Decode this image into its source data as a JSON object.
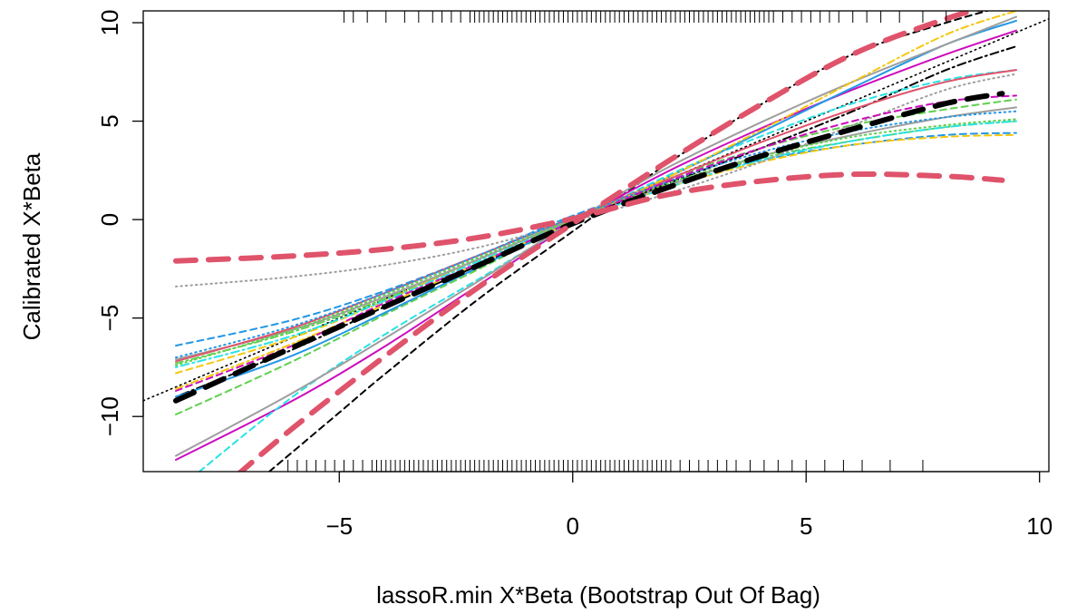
{
  "chart_data": {
    "type": "line",
    "xlabel": "lassoR.min X*Beta (Bootstrap Out Of Bag)",
    "ylabel": "Calibrated X*Beta",
    "xlim": [
      -9.2,
      10.2
    ],
    "ylim": [
      -12.8,
      10.6
    ],
    "x_ticks": [
      -5,
      0,
      5,
      10
    ],
    "x_tick_labels": [
      "−5",
      "0",
      "5",
      "10"
    ],
    "y_ticks": [
      -10,
      -5,
      0,
      5,
      10
    ],
    "y_tick_labels": [
      "−10",
      "−5",
      "0",
      "5",
      "10"
    ],
    "grid": false,
    "legend": "none",
    "reference_line": {
      "x": [
        -9.2,
        10.2
      ],
      "y": [
        -9.2,
        10.2
      ],
      "color": "#000000",
      "dash": "dotted"
    },
    "series": [
      {
        "x": [
          -8.5,
          -6,
          -4,
          -2,
          0,
          2,
          4,
          6,
          8,
          9.2
        ],
        "y": [
          -9.2,
          -6.5,
          -4.4,
          -2.3,
          -0.2,
          1.6,
          3.2,
          4.6,
          5.9,
          6.4
        ],
        "color": "#000000",
        "width": 6,
        "dash": "long"
      },
      {
        "x": [
          -8.5,
          -6,
          -4,
          -2,
          0,
          2,
          4,
          6,
          8,
          9.2
        ],
        "y": [
          -2.1,
          -1.85,
          -1.5,
          -0.9,
          0.05,
          1.25,
          1.95,
          2.3,
          2.2,
          2.0
        ],
        "color": "#df536b",
        "width": 6,
        "dash": "long"
      },
      {
        "x": [
          -7.2,
          -6,
          -4,
          -2,
          0,
          2,
          4,
          6,
          8,
          9.2
        ],
        "y": [
          -13.0,
          -10.6,
          -6.9,
          -3.4,
          -0.2,
          2.9,
          5.8,
          8.4,
          10.2,
          11.0
        ],
        "color": "#df536b",
        "width": 6,
        "dash": "long"
      },
      {
        "x": [
          -8.5,
          -6,
          -4,
          -2,
          0,
          2,
          4,
          6,
          8,
          9.5
        ],
        "y": [
          -6.4,
          -5.1,
          -3.6,
          -1.8,
          0.2,
          1.8,
          3.0,
          3.8,
          4.3,
          4.4
        ],
        "color": "#2297e6",
        "width": 2,
        "dash": "dashed"
      },
      {
        "x": [
          -8.5,
          -6,
          -4,
          -2,
          0,
          2,
          4,
          6,
          8,
          9.5
        ],
        "y": [
          -7.3,
          -5.7,
          -4.0,
          -2.0,
          0.0,
          1.7,
          3.1,
          4.0,
          4.7,
          5.0
        ],
        "color": "#61d04f",
        "width": 2,
        "dash": "dashdot"
      },
      {
        "x": [
          -8.5,
          -6,
          -4,
          -2,
          0,
          2,
          4,
          6,
          8,
          9.5
        ],
        "y": [
          -7.8,
          -6.0,
          -4.1,
          -2.0,
          -0.1,
          1.6,
          2.9,
          3.8,
          4.2,
          4.3
        ],
        "color": "#f5c710",
        "width": 2,
        "dash": "dashed"
      },
      {
        "x": [
          -8.5,
          -6,
          -4,
          -2,
          0,
          2,
          4,
          6,
          8,
          9.5
        ],
        "y": [
          -7.5,
          -5.9,
          -4.1,
          -2.1,
          -0.1,
          1.6,
          3.0,
          4.0,
          4.7,
          5.0
        ],
        "color": "#28e2e5",
        "width": 2,
        "dash": "dotdash"
      },
      {
        "x": [
          -8.5,
          -6,
          -4,
          -2,
          0,
          2,
          4,
          6,
          8,
          9.5
        ],
        "y": [
          -7.1,
          -5.6,
          -3.9,
          -2.0,
          0.0,
          1.7,
          3.2,
          4.3,
          5.2,
          5.7
        ],
        "color": "#9e9e9e",
        "width": 2,
        "dash": "solid"
      },
      {
        "x": [
          -8.5,
          -6,
          -4,
          -2,
          0,
          2,
          4,
          6,
          8,
          9.5
        ],
        "y": [
          -9.0,
          -6.6,
          -4.4,
          -2.3,
          -0.1,
          1.8,
          3.6,
          5.5,
          7.6,
          8.8
        ],
        "color": "#000000",
        "width": 2,
        "dash": "dotdash"
      },
      {
        "x": [
          -6.5,
          -5,
          -4,
          -2,
          0,
          2,
          4,
          6,
          8,
          9.5
        ],
        "y": [
          -12.8,
          -9.8,
          -7.8,
          -4.0,
          -0.6,
          2.8,
          5.8,
          8.4,
          10.0,
          11.0
        ],
        "color": "#000000",
        "width": 2,
        "dash": "dashed"
      },
      {
        "x": [
          -8.5,
          -6,
          -4,
          -2,
          0,
          2,
          4,
          6,
          8,
          9.5
        ],
        "y": [
          -12.2,
          -9.2,
          -6.4,
          -3.3,
          -0.2,
          2.4,
          4.6,
          6.6,
          8.4,
          9.6
        ],
        "color": "#cd0bbc",
        "width": 2,
        "dash": "solid"
      },
      {
        "x": [
          -8.0,
          -6,
          -4,
          -2,
          0,
          2,
          4,
          6,
          8,
          9.5
        ],
        "y": [
          -12.8,
          -9.0,
          -5.8,
          -3.0,
          -0.2,
          2.2,
          4.2,
          5.9,
          7.1,
          7.6
        ],
        "color": "#28e2e5",
        "width": 2,
        "dash": "dashed"
      },
      {
        "x": [
          -8.5,
          -6,
          -4,
          -2,
          0,
          2,
          4,
          6,
          8,
          9.5
        ],
        "y": [
          -9.9,
          -7.2,
          -4.8,
          -2.5,
          -0.1,
          2.0,
          3.6,
          4.8,
          5.6,
          6.1
        ],
        "color": "#61d04f",
        "width": 2,
        "dash": "dashed"
      },
      {
        "x": [
          -8.5,
          -6,
          -4,
          -2,
          0,
          2,
          4,
          6,
          8,
          9.5
        ],
        "y": [
          -9.0,
          -6.9,
          -4.7,
          -2.4,
          -0.1,
          2.1,
          4.4,
          6.7,
          8.9,
          10.1
        ],
        "color": "#2297e6",
        "width": 2,
        "dash": "solid"
      },
      {
        "x": [
          -8.5,
          -6,
          -4,
          -2,
          0,
          2,
          4,
          6,
          8,
          9.5
        ],
        "y": [
          -7.2,
          -5.5,
          -3.7,
          -1.8,
          0.1,
          2.0,
          3.9,
          5.6,
          7.0,
          7.6
        ],
        "color": "#df536b",
        "width": 2,
        "dash": "solid"
      },
      {
        "x": [
          -8.5,
          -6,
          -4,
          -2,
          0,
          2,
          4,
          6,
          8,
          9.5
        ],
        "y": [
          -12.0,
          -8.8,
          -6.0,
          -3.1,
          -0.1,
          2.6,
          4.9,
          7.0,
          8.9,
          10.3
        ],
        "color": "#9e9e9e",
        "width": 2,
        "dash": "solid"
      },
      {
        "x": [
          -8.5,
          -6,
          -4,
          -2,
          0,
          2,
          4,
          6,
          8,
          9.5
        ],
        "y": [
          -8.6,
          -6.3,
          -4.3,
          -2.2,
          -0.1,
          2.1,
          4.5,
          7.0,
          9.4,
          10.6
        ],
        "color": "#f5c710",
        "width": 2,
        "dash": "dashdot"
      },
      {
        "x": [
          -8.5,
          -6,
          -4,
          -2,
          0,
          2,
          4,
          6,
          8,
          9.5
        ],
        "y": [
          -3.4,
          -2.9,
          -2.3,
          -1.4,
          -0.1,
          1.3,
          2.9,
          4.8,
          6.6,
          7.4
        ],
        "color": "#9e9e9e",
        "width": 2,
        "dash": "dotted"
      },
      {
        "x": [
          -8.5,
          -6,
          -4,
          -2,
          0,
          2,
          4,
          6,
          8,
          9.5
        ],
        "y": [
          -7.0,
          -5.4,
          -3.7,
          -1.8,
          0.1,
          1.9,
          3.4,
          4.5,
          5.2,
          5.5
        ],
        "color": "#2297e6",
        "width": 2,
        "dash": "dotted"
      },
      {
        "x": [
          -8.5,
          -6,
          -4,
          -2,
          0,
          2,
          4,
          6,
          8,
          9.5
        ],
        "y": [
          -7.4,
          -5.6,
          -3.8,
          -1.9,
          0.0,
          1.8,
          3.2,
          4.2,
          4.8,
          5.1
        ],
        "color": "#61d04f",
        "width": 2,
        "dash": "dotted"
      },
      {
        "x": [
          -8.5,
          -6,
          -4,
          -2,
          0,
          2,
          4,
          6,
          8,
          9.5
        ],
        "y": [
          -8.7,
          -6.4,
          -4.2,
          -2.2,
          -0.1,
          1.9,
          3.6,
          5.0,
          6.0,
          6.3
        ],
        "color": "#cd0bbc",
        "width": 2,
        "dash": "dashed"
      }
    ],
    "rug_top": [
      -4.9,
      -4.7,
      -4.4,
      -4.0,
      -3.6,
      -3.3,
      -3.0,
      -2.8,
      -2.6,
      -2.4,
      -2.2,
      -2.1,
      -2.0,
      -1.9,
      -1.8,
      -1.7,
      -1.6,
      -1.5,
      -1.4,
      -1.3,
      -1.2,
      -1.1,
      -1.0,
      -0.9,
      -0.8,
      -0.7,
      -0.6,
      -0.5,
      -0.4,
      -0.3,
      -0.2,
      -0.1,
      0.0,
      0.1,
      0.2,
      0.3,
      0.4,
      0.5,
      0.6,
      0.7,
      0.8,
      0.9,
      1.0,
      1.1,
      1.2,
      1.3,
      1.4,
      1.5,
      1.6,
      1.7,
      1.8,
      1.9,
      2.0,
      2.1,
      2.2,
      2.3,
      2.4,
      2.5,
      2.6,
      2.7,
      2.8,
      2.9,
      3.0,
      3.1,
      3.2,
      3.3,
      3.4,
      3.5,
      3.6,
      3.7,
      3.8,
      3.9,
      4.0,
      4.1,
      4.2,
      4.3,
      4.5,
      4.7,
      4.9,
      5.1,
      5.3,
      5.5,
      5.7,
      6.0,
      6.3,
      6.6,
      7.0,
      7.5,
      8.0
    ],
    "rug_bottom": [
      -6.1,
      -5.9,
      -5.7,
      -5.5,
      -5.3,
      -5.1,
      -4.9,
      -4.7,
      -4.5,
      -4.3,
      -4.2,
      -4.1,
      -4.0,
      -3.9,
      -3.8,
      -3.7,
      -3.6,
      -3.5,
      -3.4,
      -3.3,
      -3.2,
      -3.1,
      -3.0,
      -2.9,
      -2.8,
      -2.7,
      -2.6,
      -2.5,
      -2.4,
      -2.3,
      -2.2,
      -2.1,
      -2.0,
      -1.9,
      -1.8,
      -1.7,
      -1.6,
      -1.5,
      -1.4,
      -1.3,
      -1.2,
      -1.1,
      -1.0,
      -0.9,
      -0.8,
      -0.7,
      -0.6,
      -0.5,
      -0.4,
      -0.3,
      -0.2,
      -0.1,
      0.0,
      0.1,
      0.2,
      0.3,
      0.4,
      0.5,
      0.6,
      0.7,
      0.8,
      0.9,
      1.0,
      1.1,
      1.2,
      1.3,
      1.4,
      1.5,
      1.6,
      1.7,
      1.8,
      1.9,
      2.0,
      2.1,
      2.3,
      2.5,
      2.7,
      2.9,
      3.1,
      3.3,
      3.5,
      3.8,
      4.1,
      4.4,
      4.7,
      5.0,
      5.4,
      5.8,
      6.2,
      6.8,
      7.5
    ]
  }
}
